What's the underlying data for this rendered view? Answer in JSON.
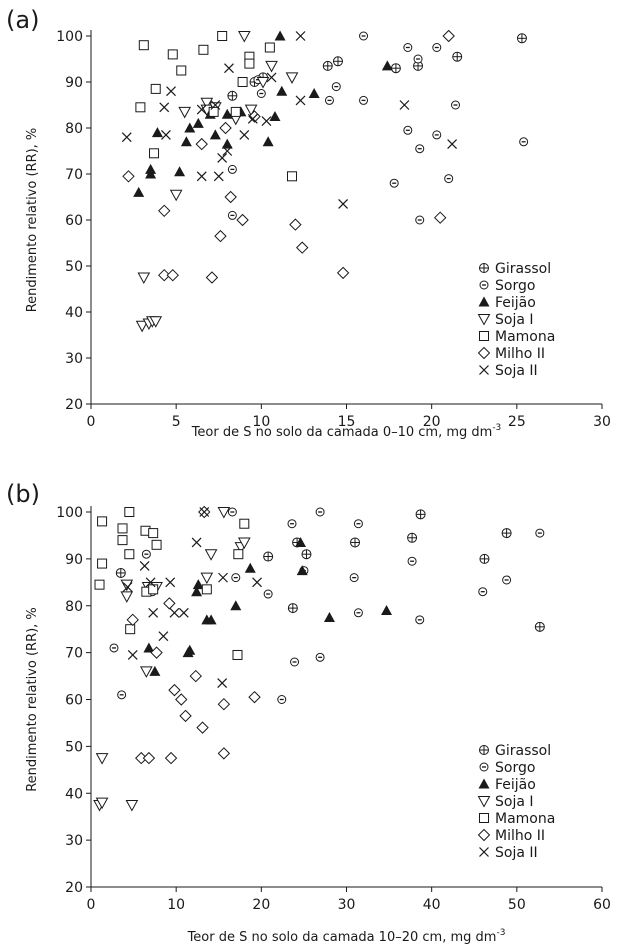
{
  "chart_data": [
    {
      "panel_label": "(a)",
      "type": "scatter",
      "xlabel": "Teor de S no solo da camada 0–10 cm, mg dm",
      "xlabel_sup": "-3",
      "ylabel": "Rendimento relativo (RR), %",
      "xlim": [
        0,
        30
      ],
      "ylim": [
        20,
        100
      ],
      "xticks": [
        0,
        5,
        10,
        15,
        20,
        25,
        30
      ],
      "yticks": [
        20,
        30,
        40,
        50,
        60,
        70,
        80,
        90,
        100
      ],
      "legend_position": "bottom-right",
      "series": [
        {
          "name": "Girassol",
          "marker": "circle-plus",
          "points": [
            [
              8.3,
              87
            ],
            [
              9.6,
              90
            ],
            [
              10.1,
              91
            ],
            [
              13.9,
              93.5
            ],
            [
              14.5,
              94.5
            ],
            [
              17.9,
              93
            ],
            [
              19.2,
              93.5
            ],
            [
              21.5,
              95.5
            ],
            [
              25.3,
              99.5
            ]
          ]
        },
        {
          "name": "Sorgo",
          "marker": "circle-dot",
          "points": [
            [
              8.3,
              71
            ],
            [
              8.3,
              61
            ],
            [
              9.8,
              90.5
            ],
            [
              10.0,
              87.5
            ],
            [
              14.0,
              86
            ],
            [
              14.4,
              89
            ],
            [
              16.0,
              100
            ],
            [
              16.0,
              86
            ],
            [
              17.8,
              68
            ],
            [
              18.6,
              97.5
            ],
            [
              18.6,
              79.5
            ],
            [
              19.2,
              95
            ],
            [
              19.3,
              75.5
            ],
            [
              19.3,
              60
            ],
            [
              20.3,
              97.5
            ],
            [
              20.3,
              78.5
            ],
            [
              21.0,
              69
            ],
            [
              21.4,
              85
            ],
            [
              25.4,
              77
            ]
          ]
        },
        {
          "name": "Feijão",
          "marker": "triangle-up",
          "points": [
            [
              2.8,
              66
            ],
            [
              3.5,
              70
            ],
            [
              3.5,
              71
            ],
            [
              3.9,
              79
            ],
            [
              5.2,
              70.5
            ],
            [
              5.6,
              77
            ],
            [
              5.8,
              80
            ],
            [
              6.3,
              81
            ],
            [
              7.0,
              83
            ],
            [
              7.3,
              78.5
            ],
            [
              8.0,
              76.5
            ],
            [
              8.0,
              83
            ],
            [
              8.8,
              83.5
            ],
            [
              10.4,
              77
            ],
            [
              10.8,
              82.5
            ],
            [
              11.1,
              100
            ],
            [
              11.2,
              88
            ],
            [
              13.1,
              87.5
            ],
            [
              17.4,
              93.5
            ]
          ]
        },
        {
          "name": "Soja I",
          "marker": "triangle-down",
          "points": [
            [
              3.0,
              37
            ],
            [
              3.1,
              47.5
            ],
            [
              3.4,
              37.5
            ],
            [
              3.6,
              38
            ],
            [
              3.8,
              38
            ],
            [
              5.0,
              65.5
            ],
            [
              5.5,
              83.5
            ],
            [
              6.8,
              85.5
            ],
            [
              6.8,
              84
            ],
            [
              7.3,
              84.5
            ],
            [
              8.5,
              82
            ],
            [
              9.0,
              100
            ],
            [
              9.4,
              84
            ],
            [
              10.1,
              90
            ],
            [
              10.6,
              93.5
            ],
            [
              11.8,
              91
            ]
          ]
        },
        {
          "name": "Mamona",
          "marker": "square",
          "points": [
            [
              2.9,
              84.5
            ],
            [
              3.1,
              98
            ],
            [
              3.7,
              74.5
            ],
            [
              3.8,
              88.5
            ],
            [
              4.8,
              96
            ],
            [
              5.3,
              92.5
            ],
            [
              6.6,
              97
            ],
            [
              7.2,
              83.5
            ],
            [
              7.7,
              100
            ],
            [
              8.5,
              83.5
            ],
            [
              8.9,
              90
            ],
            [
              9.3,
              95.5
            ],
            [
              9.3,
              94
            ],
            [
              10.5,
              97.5
            ],
            [
              11.8,
              69.5
            ]
          ]
        },
        {
          "name": "Milho II",
          "marker": "diamond",
          "points": [
            [
              2.2,
              69.5
            ],
            [
              4.3,
              62
            ],
            [
              4.3,
              48
            ],
            [
              4.8,
              48
            ],
            [
              6.5,
              76.5
            ],
            [
              7.1,
              47.5
            ],
            [
              7.6,
              56.5
            ],
            [
              7.9,
              80
            ],
            [
              8.2,
              65
            ],
            [
              8.9,
              60
            ],
            [
              9.6,
              82.5
            ],
            [
              12.0,
              59
            ],
            [
              12.4,
              54
            ],
            [
              14.8,
              48.5
            ],
            [
              20.5,
              60.5
            ],
            [
              21.0,
              100
            ]
          ]
        },
        {
          "name": "Soja II",
          "marker": "x",
          "points": [
            [
              2.1,
              78
            ],
            [
              4.3,
              84.5
            ],
            [
              4.4,
              78.5
            ],
            [
              4.7,
              88
            ],
            [
              6.5,
              69.5
            ],
            [
              6.5,
              84
            ],
            [
              7.3,
              85
            ],
            [
              7.5,
              69.5
            ],
            [
              7.7,
              73.5
            ],
            [
              8.0,
              75
            ],
            [
              8.1,
              93
            ],
            [
              9.0,
              78.5
            ],
            [
              9.5,
              82
            ],
            [
              10.3,
              81.5
            ],
            [
              10.6,
              91
            ],
            [
              12.3,
              100
            ],
            [
              12.3,
              86
            ],
            [
              14.8,
              63.5
            ],
            [
              18.4,
              85
            ],
            [
              21.2,
              76.5
            ]
          ]
        }
      ]
    },
    {
      "panel_label": "(b)",
      "type": "scatter",
      "xlabel": "Teor de S no solo da camada 10–20 cm, mg dm",
      "xlabel_sup": "-3",
      "ylabel": "Rendimento relativo (RR), %",
      "xlim": [
        0,
        60
      ],
      "ylim": [
        20,
        100
      ],
      "xticks": [
        0,
        10,
        20,
        30,
        40,
        50,
        60
      ],
      "yticks": [
        20,
        30,
        40,
        50,
        60,
        70,
        80,
        90,
        100
      ],
      "legend_position": "bottom-right",
      "series": [
        {
          "name": "Girassol",
          "marker": "circle-plus",
          "points": [
            [
              3.5,
              87
            ],
            [
              20.8,
              90.5
            ],
            [
              23.7,
              79.5
            ],
            [
              24.2,
              93.5
            ],
            [
              25.3,
              91
            ],
            [
              31.0,
              93.5
            ],
            [
              37.7,
              94.5
            ],
            [
              38.7,
              99.5
            ],
            [
              46.2,
              90
            ],
            [
              48.8,
              95.5
            ],
            [
              52.7,
              75.5
            ]
          ]
        },
        {
          "name": "Sorgo",
          "marker": "circle-dot",
          "points": [
            [
              2.7,
              71
            ],
            [
              3.6,
              61
            ],
            [
              6.5,
              91
            ],
            [
              7.2,
              83
            ],
            [
              16.6,
              100
            ],
            [
              17.0,
              86
            ],
            [
              20.8,
              82.5
            ],
            [
              22.4,
              60
            ],
            [
              23.6,
              97.5
            ],
            [
              23.9,
              68
            ],
            [
              25.0,
              87.5
            ],
            [
              26.9,
              100
            ],
            [
              26.9,
              69
            ],
            [
              30.9,
              86
            ],
            [
              31.4,
              97.5
            ],
            [
              31.4,
              78.5
            ],
            [
              37.7,
              89.5
            ],
            [
              38.6,
              77
            ],
            [
              46.0,
              83
            ],
            [
              48.8,
              85.5
            ],
            [
              52.7,
              95.5
            ]
          ]
        },
        {
          "name": "Feijão",
          "marker": "triangle-up",
          "points": [
            [
              6.8,
              71
            ],
            [
              7.5,
              66
            ],
            [
              11.4,
              70
            ],
            [
              11.6,
              70.5
            ],
            [
              12.4,
              83
            ],
            [
              12.6,
              84.5
            ],
            [
              13.6,
              77
            ],
            [
              14.1,
              77
            ],
            [
              17.0,
              80
            ],
            [
              18.7,
              88
            ],
            [
              24.6,
              93.5
            ],
            [
              24.8,
              87.5
            ],
            [
              28.0,
              77.5
            ],
            [
              34.7,
              79
            ]
          ]
        },
        {
          "name": "Soja I",
          "marker": "triangle-down",
          "points": [
            [
              1.0,
              37.5
            ],
            [
              1.3,
              38
            ],
            [
              1.3,
              47.5
            ],
            [
              4.2,
              84.5
            ],
            [
              4.2,
              82
            ],
            [
              4.8,
              37.5
            ],
            [
              6.5,
              66
            ],
            [
              6.7,
              84
            ],
            [
              7.7,
              84
            ],
            [
              13.6,
              86
            ],
            [
              14.1,
              91
            ],
            [
              15.6,
              100
            ],
            [
              17.6,
              92.5
            ],
            [
              18.0,
              93.5
            ]
          ]
        },
        {
          "name": "Mamona",
          "marker": "square",
          "points": [
            [
              1.0,
              84.5
            ],
            [
              1.3,
              98
            ],
            [
              1.3,
              89
            ],
            [
              3.7,
              96.5
            ],
            [
              3.7,
              94
            ],
            [
              4.5,
              100
            ],
            [
              4.5,
              91
            ],
            [
              4.6,
              75
            ],
            [
              6.4,
              96
            ],
            [
              6.5,
              83
            ],
            [
              7.3,
              95.5
            ],
            [
              7.3,
              83.5
            ],
            [
              7.7,
              93
            ],
            [
              13.6,
              83.5
            ],
            [
              17.2,
              69.5
            ],
            [
              17.3,
              91
            ],
            [
              18.0,
              97.5
            ]
          ]
        },
        {
          "name": "Milho II",
          "marker": "diamond",
          "points": [
            [
              4.9,
              77
            ],
            [
              5.9,
              47.5
            ],
            [
              6.8,
              47.5
            ],
            [
              7.7,
              70
            ],
            [
              9.2,
              80.5
            ],
            [
              9.4,
              47.5
            ],
            [
              9.8,
              62
            ],
            [
              10.6,
              60
            ],
            [
              11.1,
              56.5
            ],
            [
              12.3,
              65
            ],
            [
              13.1,
              54
            ],
            [
              13.3,
              100
            ],
            [
              15.6,
              59
            ],
            [
              15.6,
              48.5
            ],
            [
              19.2,
              60.5
            ]
          ]
        },
        {
          "name": "Soja II",
          "marker": "x",
          "points": [
            [
              4.3,
              84
            ],
            [
              4.9,
              69.5
            ],
            [
              6.3,
              88.5
            ],
            [
              7.0,
              85
            ],
            [
              7.3,
              78.5
            ],
            [
              8.5,
              73.5
            ],
            [
              9.3,
              85
            ],
            [
              9.8,
              78.5
            ],
            [
              10.9,
              78.5
            ],
            [
              12.4,
              93.5
            ],
            [
              13.3,
              100
            ],
            [
              15.4,
              63.5
            ],
            [
              15.5,
              86
            ],
            [
              19.5,
              85
            ]
          ]
        }
      ]
    }
  ]
}
